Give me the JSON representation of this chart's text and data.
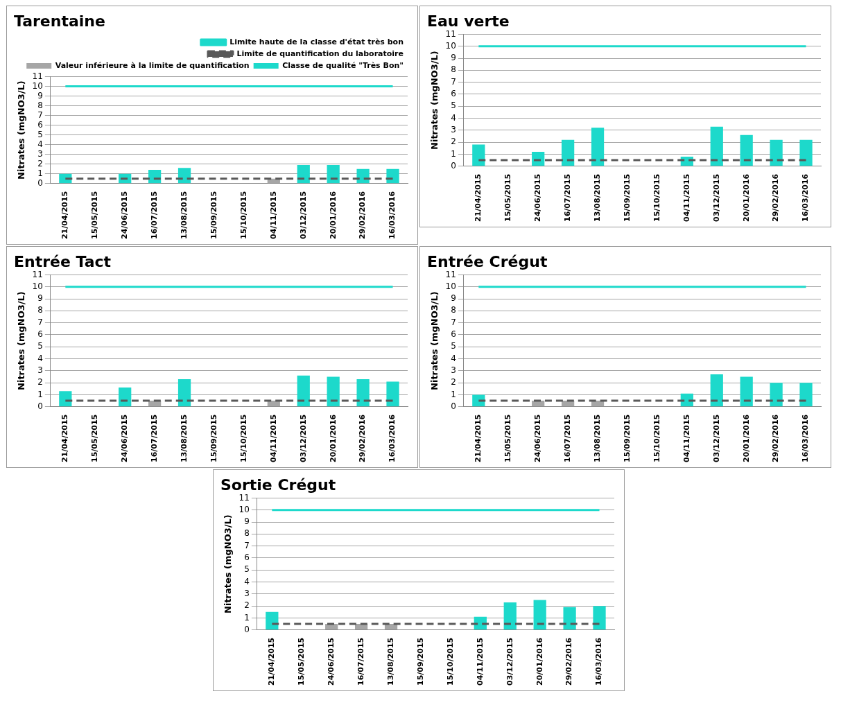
{
  "chart_data": [
    {
      "type": "bar",
      "title": "Tarentaine",
      "ylabel": "Nitrates (mgNO3/L)",
      "categories": [
        "21/04/2015",
        "15/05/2015",
        "24/06/2015",
        "16/07/2015",
        "13/08/2015",
        "15/09/2015",
        "15/10/2015",
        "04/11/2015",
        "03/12/2015",
        "20/01/2016",
        "29/02/2016",
        "16/03/2016"
      ],
      "ylim": [
        0,
        11
      ],
      "yticks": [
        0,
        1,
        2,
        3,
        4,
        5,
        6,
        7,
        8,
        9,
        10,
        11
      ],
      "grid": "y",
      "stacked": true,
      "legend": "top right",
      "series": [
        {
          "type": "line",
          "name": "Limite haute de la classe d'état très bon",
          "color": "#1dd9cb",
          "line_style": "solid",
          "values": [
            10,
            10,
            10,
            10,
            10,
            10,
            10,
            10,
            10,
            10,
            10,
            10
          ]
        },
        {
          "type": "line",
          "name": "Limite de quantification du laboratoire",
          "color": "#595959",
          "line_style": "dashed",
          "values": [
            0.5,
            0.5,
            0.5,
            0.5,
            0.5,
            0.5,
            0.5,
            0.5,
            0.5,
            0.5,
            0.5,
            0.5
          ]
        },
        {
          "type": "bar",
          "name": "Valeur inférieure à la limite de quantification",
          "color": "#a6a6a6",
          "values": [
            null,
            null,
            null,
            null,
            null,
            null,
            null,
            0.5,
            null,
            null,
            null,
            null
          ]
        },
        {
          "type": "bar",
          "name": "Classe de qualité \"Très Bon\"",
          "color": "#1dd9cb",
          "values": [
            1,
            null,
            1,
            1.4,
            1.6,
            null,
            null,
            null,
            1.9,
            1.9,
            1.5,
            1.5
          ]
        }
      ]
    },
    {
      "type": "bar",
      "title": "Eau verte",
      "ylabel": "Nitrates (mgNO3/L)",
      "categories": [
        "21/04/2015",
        "15/05/2015",
        "24/06/2015",
        "16/07/2015",
        "13/08/2015",
        "15/09/2015",
        "15/10/2015",
        "04/11/2015",
        "03/12/2015",
        "20/01/2016",
        "29/02/2016",
        "16/03/2016"
      ],
      "ylim": [
        0,
        11
      ],
      "yticks": [
        0,
        1,
        2,
        3,
        4,
        5,
        6,
        7,
        8,
        9,
        10,
        11
      ],
      "grid": "y",
      "stacked": true,
      "series": [
        {
          "type": "line",
          "color": "#1dd9cb",
          "line_style": "solid",
          "values": [
            10,
            10,
            10,
            10,
            10,
            10,
            10,
            10,
            10,
            10,
            10,
            10
          ]
        },
        {
          "type": "line",
          "color": "#595959",
          "line_style": "dashed",
          "values": [
            0.5,
            0.5,
            0.5,
            0.5,
            0.5,
            0.5,
            0.5,
            0.5,
            0.5,
            0.5,
            0.5,
            0.5
          ]
        },
        {
          "type": "bar",
          "color": "#1dd9cb",
          "values": [
            1.8,
            null,
            1.2,
            2.2,
            3.2,
            null,
            null,
            0.8,
            3.3,
            2.6,
            2.2,
            2.2
          ]
        }
      ]
    },
    {
      "type": "bar",
      "title": "Entrée Tact",
      "ylabel": "Nitrates (mgNO3/L)",
      "categories": [
        "21/04/2015",
        "15/05/2015",
        "24/06/2015",
        "16/07/2015",
        "13/08/2015",
        "15/09/2015",
        "15/10/2015",
        "04/11/2015",
        "03/12/2015",
        "20/01/2016",
        "29/02/2016",
        "16/03/2016"
      ],
      "ylim": [
        0,
        11
      ],
      "yticks": [
        0,
        1,
        2,
        3,
        4,
        5,
        6,
        7,
        8,
        9,
        10,
        11
      ],
      "grid": "y",
      "stacked": true,
      "series": [
        {
          "type": "line",
          "color": "#1dd9cb",
          "line_style": "solid",
          "values": [
            10,
            10,
            10,
            10,
            10,
            10,
            10,
            10,
            10,
            10,
            10,
            10
          ]
        },
        {
          "type": "line",
          "color": "#595959",
          "line_style": "dashed",
          "values": [
            0.5,
            0.5,
            0.5,
            0.5,
            0.5,
            0.5,
            0.5,
            0.5,
            0.5,
            0.5,
            0.5,
            0.5
          ]
        },
        {
          "type": "bar",
          "color": "#a6a6a6",
          "values": [
            null,
            null,
            null,
            0.5,
            null,
            null,
            null,
            0.5,
            null,
            null,
            null,
            null
          ]
        },
        {
          "type": "bar",
          "color": "#1dd9cb",
          "values": [
            1.3,
            null,
            1.6,
            null,
            2.3,
            null,
            null,
            null,
            2.6,
            2.5,
            2.3,
            2.1
          ]
        }
      ]
    },
    {
      "type": "bar",
      "title": "Entrée Crégut",
      "ylabel": "Nitrates (mgNO3/L)",
      "categories": [
        "21/04/2015",
        "15/05/2015",
        "24/06/2015",
        "16/07/2015",
        "13/08/2015",
        "15/09/2015",
        "15/10/2015",
        "04/11/2015",
        "03/12/2015",
        "20/01/2016",
        "29/02/2016",
        "16/03/2016"
      ],
      "ylim": [
        0,
        11
      ],
      "yticks": [
        0,
        1,
        2,
        3,
        4,
        5,
        6,
        7,
        8,
        9,
        10,
        11
      ],
      "grid": "y",
      "stacked": true,
      "series": [
        {
          "type": "line",
          "color": "#1dd9cb",
          "line_style": "solid",
          "values": [
            10,
            10,
            10,
            10,
            10,
            10,
            10,
            10,
            10,
            10,
            10,
            10
          ]
        },
        {
          "type": "line",
          "color": "#595959",
          "line_style": "dashed",
          "values": [
            0.5,
            0.5,
            0.5,
            0.5,
            0.5,
            0.5,
            0.5,
            0.5,
            0.5,
            0.5,
            0.5,
            0.5
          ]
        },
        {
          "type": "bar",
          "color": "#a6a6a6",
          "values": [
            null,
            null,
            0.5,
            0.5,
            0.5,
            null,
            null,
            null,
            null,
            null,
            null,
            null
          ]
        },
        {
          "type": "bar",
          "color": "#1dd9cb",
          "values": [
            1,
            null,
            null,
            null,
            null,
            null,
            null,
            1.1,
            2.7,
            2.5,
            2,
            2
          ]
        }
      ]
    },
    {
      "type": "bar",
      "title": "Sortie Crégut",
      "ylabel": "Nitrates (mgNO3/L)",
      "categories": [
        "21/04/2015",
        "15/05/2015",
        "24/06/2015",
        "16/07/2015",
        "13/08/2015",
        "15/09/2015",
        "15/10/2015",
        "04/11/2015",
        "03/12/2015",
        "20/01/2016",
        "29/02/2016",
        "16/03/2016"
      ],
      "ylim": [
        0,
        11
      ],
      "yticks": [
        0,
        1,
        2,
        3,
        4,
        5,
        6,
        7,
        8,
        9,
        10,
        11
      ],
      "grid": "y",
      "stacked": true,
      "series": [
        {
          "type": "line",
          "color": "#1dd9cb",
          "line_style": "solid",
          "values": [
            10,
            10,
            10,
            10,
            10,
            10,
            10,
            10,
            10,
            10,
            10,
            10
          ]
        },
        {
          "type": "line",
          "color": "#595959",
          "line_style": "dashed",
          "values": [
            0.5,
            0.5,
            0.5,
            0.5,
            0.5,
            0.5,
            0.5,
            0.5,
            0.5,
            0.5,
            0.5,
            0.5
          ]
        },
        {
          "type": "bar",
          "color": "#a6a6a6",
          "values": [
            null,
            null,
            0.5,
            0.5,
            0.5,
            null,
            null,
            null,
            null,
            null,
            null,
            null
          ]
        },
        {
          "type": "bar",
          "color": "#1dd9cb",
          "values": [
            1.5,
            null,
            null,
            null,
            null,
            null,
            null,
            1.1,
            2.3,
            2.5,
            1.9,
            2
          ]
        }
      ]
    }
  ]
}
